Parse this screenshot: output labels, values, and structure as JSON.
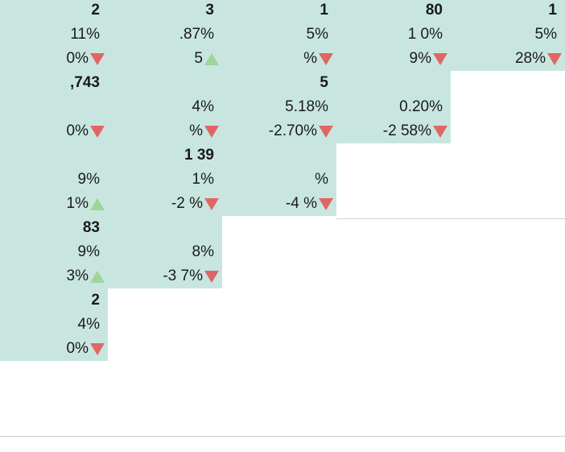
{
  "grid": {
    "columns": [
      {
        "cells": [
          {
            "value": "2",
            "pct": "11%",
            "change": "0%",
            "trend": "down"
          },
          {
            "value": ",743",
            "pct": "",
            "change": "0%",
            "trend": "down"
          },
          {
            "value": "",
            "pct": "9%",
            "change": "1%",
            "trend": "up"
          },
          {
            "value": "83",
            "pct": "9%",
            "change": "3%",
            "trend": "up"
          },
          {
            "value": "2",
            "pct": "4%",
            "change": "0%",
            "trend": "down"
          }
        ]
      },
      {
        "cells": [
          {
            "value": "3",
            "pct": ".87%",
            "change": "5",
            "trend": "up"
          },
          {
            "value": "",
            "pct": "4%",
            "change": "%",
            "trend": "down"
          },
          {
            "value": "1 39",
            "pct": "1%",
            "change": "-2 %",
            "trend": "down"
          },
          {
            "value": "",
            "pct": "8%",
            "change": "-3 7%",
            "trend": "down"
          }
        ]
      },
      {
        "cells": [
          {
            "value": "1",
            "pct": "5%",
            "change": "%",
            "trend": "down"
          },
          {
            "value": "5",
            "pct": "5.18%",
            "change": "-2.70%",
            "trend": "down"
          },
          {
            "value": "",
            "pct": "%",
            "change": "-4 %",
            "trend": "down"
          }
        ]
      },
      {
        "cells": [
          {
            "value": "80",
            "pct": "1 0%",
            "change": "9%",
            "trend": "down"
          },
          {
            "value": "",
            "pct": "0.20%",
            "change": "-2 58%",
            "trend": "down"
          }
        ]
      },
      {
        "cells": [
          {
            "value": "1",
            "pct": "5%",
            "change": "28%",
            "trend": "down"
          }
        ]
      }
    ]
  },
  "colors": {
    "cell_bg": "#c8e6df",
    "down": "#e06666",
    "up": "#9fd49a"
  }
}
